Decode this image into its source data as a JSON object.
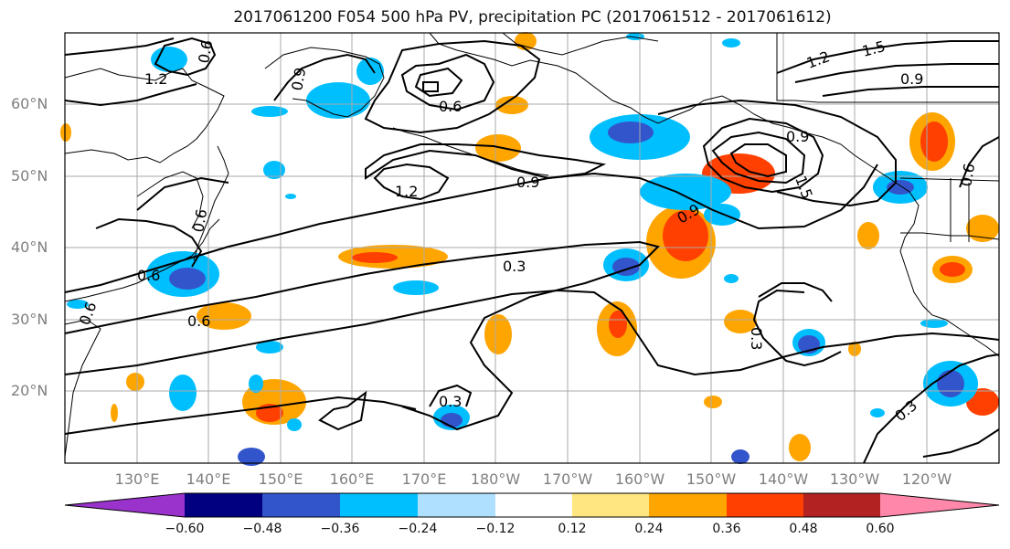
{
  "title": "2017061200 F054 500 hPa PV, precipitation PC (2017061512 - 2017061612)",
  "lat_labels": [
    "60°N",
    "50°N",
    "40°N",
    "30°N",
    "20°N"
  ],
  "lon_labels": [
    "130°E",
    "140°E",
    "150°E",
    "160°E",
    "170°E",
    "180°W",
    "170°W",
    "160°W",
    "150°W",
    "140°W",
    "130°W",
    "120°W"
  ],
  "contour_labels": [
    "1.2",
    "0.6",
    "0.9",
    "0.6",
    "1.2",
    "0.9",
    "0.3",
    "0.6",
    "0.6",
    "0.6",
    "0.9",
    "1.5",
    "0.9",
    "1.2",
    "1.5",
    "0.9",
    "0.3",
    "0.3",
    "0.3",
    "0.6",
    "0.6"
  ],
  "colorbar": {
    "levels": [
      "−0.60",
      "−0.48",
      "−0.36",
      "−0.24",
      "−0.12",
      "0.12",
      "0.24",
      "0.36",
      "0.48",
      "0.60"
    ],
    "colors": [
      "#9933cc",
      "#000080",
      "#3355cc",
      "#00bfff",
      "#b0e0ff",
      "#ffffff",
      "#ffe680",
      "#ffa500",
      "#ff4000",
      "#b22222",
      "#ff88aa"
    ]
  },
  "colors": {
    "contour": "#000000",
    "coast": "#000000",
    "grid": "#aaaaaa",
    "tick_label": "#7f7f7f"
  }
}
